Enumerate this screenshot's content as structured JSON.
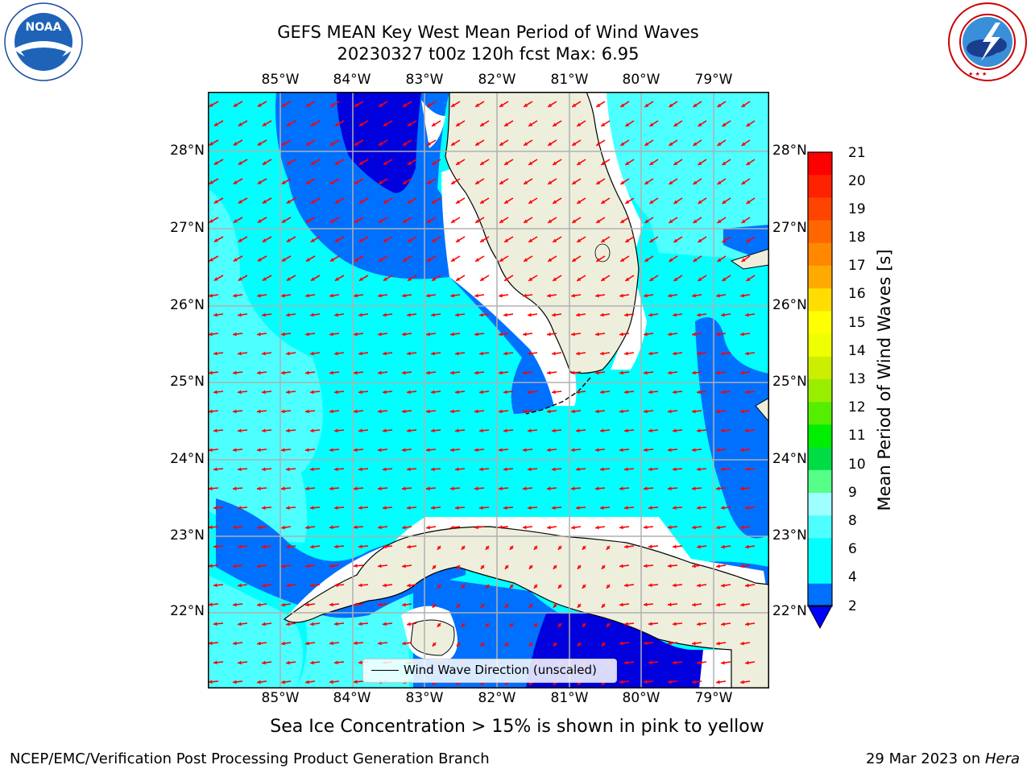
{
  "header": {
    "title_line1": "GEFS MEAN Key West Mean Period of Wind Waves",
    "title_line2": "20230327 t00z 120h fcst   Max: 6.95"
  },
  "logos": {
    "noaa": {
      "text": "NOAA",
      "ring_text": "NATIONAL OCEANIC AND ATMOSPHERIC ADMINISTRATION · U.S. DEPARTMENT OF COMMERCE"
    },
    "nws": {
      "ring_text": "NATIONAL WEATHER SERVICE"
    }
  },
  "axes": {
    "lon_labels": [
      "85°W",
      "84°W",
      "83°W",
      "82°W",
      "81°W",
      "80°W",
      "79°W"
    ],
    "lat_labels": [
      "28°N",
      "27°N",
      "26°N",
      "25°N",
      "24°N",
      "23°N",
      "22°N"
    ]
  },
  "legend": {
    "label": "Wind Wave Direction (unscaled)"
  },
  "colorbar": {
    "label": "Mean Period of Wind Waves [s]",
    "ticks": [
      "21",
      "20",
      "19",
      "18",
      "17",
      "16",
      "15",
      "14",
      "13",
      "12",
      "11",
      "10",
      "9",
      "8",
      "6",
      "4",
      "2"
    ],
    "colors": {
      "bin_2_4": "#0070ff",
      "bin_4_6": "#00ffff",
      "bin_6_8": "#4dffff",
      "bin_8_9": "#9fffff",
      "below": "#0000dd",
      "land": "#eeeedd",
      "vector": "#ff0000"
    }
  },
  "notes": {
    "sea_ice": "Sea Ice Concentration > 15% is shown in pink to yellow"
  },
  "footer": {
    "left": "NCEP/EMC/Verification Post Processing Product Generation Branch",
    "right_date": "29 Mar 2023 on ",
    "right_host": "Hera"
  }
}
